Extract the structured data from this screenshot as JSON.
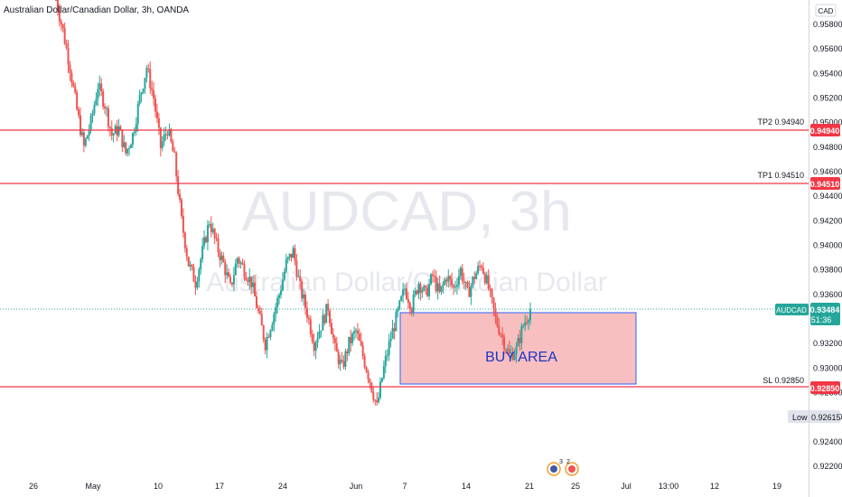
{
  "header": {
    "symbol_title": "Australian Dollar/Canadian Dollar, 3h, OANDA",
    "currency": "CAD"
  },
  "watermark": {
    "symbol": "AUDCAD, 3h",
    "description": "Australian Dollar/Canadian Dollar"
  },
  "annotations": {
    "buy_area_label": "BUY AREA"
  },
  "price_labels": {
    "current_symbol": "AUDCAD",
    "current_value": "0.93484",
    "countdown": "51:36",
    "low_label": "Low",
    "low_value": "0.92615",
    "tp2_name": "TP2 0.94940",
    "tp2_value": "0.94940",
    "tp1_name": "TP1 0.94510",
    "tp1_value": "0.94510",
    "sl_name": "SL 0.92850",
    "sl_value": "0.92850"
  },
  "events": {
    "count": "3",
    "count2": "2"
  },
  "colors": {
    "up": "#26a69a",
    "down": "#ef5350",
    "level_line": "#f23645",
    "box_fill": "#f6b8b8",
    "box_border": "#2962ff",
    "buy_text": "#1e34c8",
    "current_badge": "#26a69a",
    "watermark": "#e6e8ee"
  },
  "chart_data": {
    "type": "candlestick",
    "symbol": "AUDCAD",
    "timeframe": "3h",
    "source": "OANDA",
    "ylim": [
      0.9212,
      0.9596
    ],
    "y_ticks": [
      "0.95800",
      "0.95600",
      "0.95400",
      "0.95200",
      "0.95000",
      "0.94800",
      "0.94600",
      "0.94400",
      "0.94200",
      "0.94000",
      "0.93800",
      "0.93600",
      "0.93200",
      "0.93000",
      "0.92800",
      "0.92600",
      "0.92400",
      "0.92200"
    ],
    "x_ticks": [
      "26",
      "May",
      "10",
      "17",
      "24",
      "Jun",
      "7",
      "14",
      "21",
      "25",
      "Jul",
      "13:00",
      "12",
      "19"
    ],
    "levels": [
      {
        "name": "TP2",
        "value": 0.9494
      },
      {
        "name": "TP1",
        "value": 0.9451
      },
      {
        "name": "SL",
        "value": 0.9285
      }
    ],
    "buy_area": {
      "low": 0.9287,
      "high": 0.9346,
      "label": "BUY AREA"
    },
    "current_price": 0.93484,
    "low": 0.92615,
    "close_path": [
      [
        0.96,
        3
      ],
      [
        0.9575,
        3
      ],
      [
        0.9545,
        1
      ],
      [
        0.951,
        2
      ],
      [
        0.948,
        1
      ],
      [
        0.95,
        2
      ],
      [
        0.953,
        3
      ],
      [
        0.9515,
        2
      ],
      [
        0.949,
        2
      ],
      [
        0.9495,
        2
      ],
      [
        0.9475,
        2
      ],
      [
        0.949,
        1
      ],
      [
        0.952,
        2
      ],
      [
        0.9545,
        3
      ],
      [
        0.952,
        3
      ],
      [
        0.948,
        2
      ],
      [
        0.9495,
        3
      ],
      [
        0.947,
        2
      ],
      [
        0.942,
        1
      ],
      [
        0.9385,
        2
      ],
      [
        0.937,
        2
      ],
      [
        0.9395,
        2
      ],
      [
        0.942,
        2
      ],
      [
        0.94,
        2
      ],
      [
        0.9385,
        2
      ],
      [
        0.9365,
        2
      ],
      [
        0.939,
        2
      ],
      [
        0.938,
        2
      ],
      [
        0.937,
        2
      ],
      [
        0.9345,
        2
      ],
      [
        0.932,
        2
      ],
      [
        0.934,
        2
      ],
      [
        0.936,
        2
      ],
      [
        0.9385,
        2
      ],
      [
        0.9395,
        2
      ],
      [
        0.9365,
        2
      ],
      [
        0.9345,
        2
      ],
      [
        0.932,
        2
      ],
      [
        0.9335,
        2
      ],
      [
        0.935,
        2
      ],
      [
        0.9315,
        2
      ],
      [
        0.93,
        1
      ],
      [
        0.932,
        2
      ],
      [
        0.933,
        2
      ],
      [
        0.931,
        2
      ],
      [
        0.929,
        2
      ],
      [
        0.9268,
        2
      ],
      [
        0.93,
        1
      ],
      [
        0.9325,
        1
      ],
      [
        0.9345,
        2
      ],
      [
        0.9365,
        2
      ],
      [
        0.935,
        2
      ],
      [
        0.937,
        2
      ],
      [
        0.936,
        2
      ],
      [
        0.9375,
        2
      ],
      [
        0.936,
        2
      ],
      [
        0.9375,
        2
      ],
      [
        0.9365,
        2
      ],
      [
        0.938,
        2
      ],
      [
        0.936,
        2
      ],
      [
        0.9375,
        2
      ],
      [
        0.9385,
        2
      ],
      [
        0.9365,
        2
      ],
      [
        0.934,
        2
      ],
      [
        0.9325,
        2
      ],
      [
        0.931,
        2
      ],
      [
        0.9315,
        1
      ],
      [
        0.9335,
        2
      ],
      [
        0.9348,
        2
      ]
    ]
  }
}
